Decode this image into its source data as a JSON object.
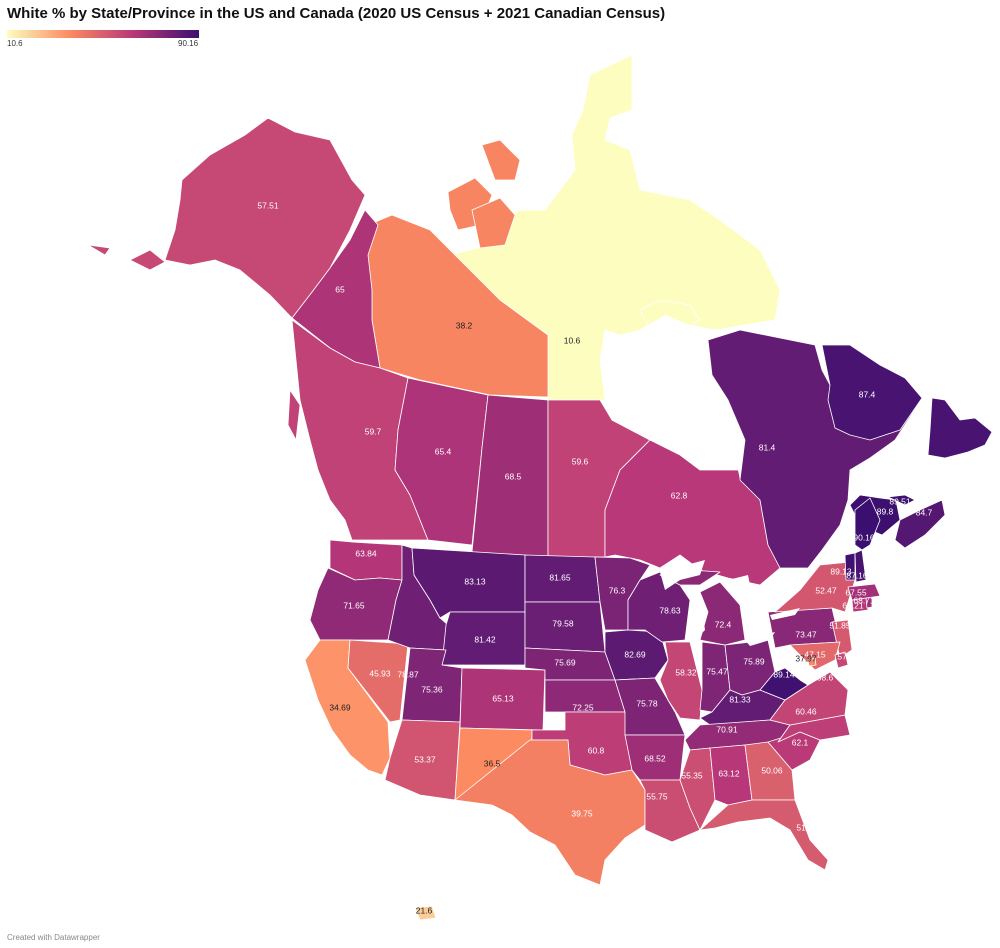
{
  "title": "White % by State/Province in the US and Canada (2020 US Census + 2021 Canadian Census)",
  "legend": {
    "min": "10.6",
    "max": "90.16"
  },
  "credit": "Created with Datawrapper",
  "colors": {
    "low": "#fcfdbf",
    "mid1": "#fc8961",
    "mid2": "#b73779",
    "high": "#3b0f70",
    "water": "#ffffff"
  },
  "regions": [
    {
      "id": "nunavut",
      "name": "Nunavut",
      "value": 10.6
    },
    {
      "id": "nwt",
      "name": "Northwest Territories",
      "value": 38.2
    },
    {
      "id": "yukon",
      "name": "Yukon",
      "value": 65
    },
    {
      "id": "bc",
      "name": "British Columbia",
      "value": 59.7
    },
    {
      "id": "ab",
      "name": "Alberta",
      "value": 65.4
    },
    {
      "id": "sk",
      "name": "Saskatchewan",
      "value": 68.5
    },
    {
      "id": "mb",
      "name": "Manitoba",
      "value": 59.6
    },
    {
      "id": "on",
      "name": "Ontario",
      "value": 62.8
    },
    {
      "id": "qc",
      "name": "Quebec",
      "value": 81.4
    },
    {
      "id": "nl_lab",
      "name": "Newfoundland and Labrador (Labrador)",
      "value": 87.4
    },
    {
      "id": "nl_isl",
      "name": "Newfoundland and Labrador (Island)",
      "value": null
    },
    {
      "id": "nb",
      "name": "New Brunswick",
      "value": 89.8
    },
    {
      "id": "ns",
      "name": "Nova Scotia",
      "value": 84.7
    },
    {
      "id": "pe",
      "name": "Prince Edward Island",
      "value": 89.51
    },
    {
      "id": "ak",
      "name": "Alaska",
      "value": 57.51
    },
    {
      "id": "hi",
      "name": "Hawaii",
      "value": 21.6
    },
    {
      "id": "wa",
      "name": "Washington",
      "value": 63.84
    },
    {
      "id": "or",
      "name": "Oregon",
      "value": 71.65
    },
    {
      "id": "ca",
      "name": "California",
      "value": 34.69
    },
    {
      "id": "nv",
      "name": "Nevada",
      "value": 45.93
    },
    {
      "id": "id",
      "name": "Idaho",
      "value": 78.87
    },
    {
      "id": "mt",
      "name": "Montana",
      "value": 83.13
    },
    {
      "id": "wy",
      "name": "Wyoming",
      "value": 81.42
    },
    {
      "id": "ut",
      "name": "Utah",
      "value": 75.36
    },
    {
      "id": "az",
      "name": "Arizona",
      "value": 53.37
    },
    {
      "id": "co",
      "name": "Colorado",
      "value": 65.13
    },
    {
      "id": "nm",
      "name": "New Mexico",
      "value": 36.5
    },
    {
      "id": "nd",
      "name": "North Dakota",
      "value": 81.65
    },
    {
      "id": "sd",
      "name": "South Dakota",
      "value": 79.58
    },
    {
      "id": "ne",
      "name": "Nebraska",
      "value": 75.69
    },
    {
      "id": "ks",
      "name": "Kansas",
      "value": 72.25
    },
    {
      "id": "ok",
      "name": "Oklahoma",
      "value": 60.8
    },
    {
      "id": "tx",
      "name": "Texas",
      "value": 39.75
    },
    {
      "id": "mn",
      "name": "Minnesota",
      "value": 76.3
    },
    {
      "id": "ia",
      "name": "Iowa",
      "value": 82.69
    },
    {
      "id": "mo",
      "name": "Missouri",
      "value": 75.78
    },
    {
      "id": "ar",
      "name": "Arkansas",
      "value": 68.52
    },
    {
      "id": "la",
      "name": "Louisiana",
      "value": 55.75
    },
    {
      "id": "wi",
      "name": "Wisconsin",
      "value": 78.63
    },
    {
      "id": "il",
      "name": "Illinois",
      "value": 58.32
    },
    {
      "id": "mi",
      "name": "Michigan",
      "value": 72.4
    },
    {
      "id": "in",
      "name": "Indiana",
      "value": 75.47
    },
    {
      "id": "oh",
      "name": "Ohio",
      "value": 75.89
    },
    {
      "id": "ky",
      "name": "Kentucky",
      "value": 81.33
    },
    {
      "id": "tn",
      "name": "Tennessee",
      "value": 70.91
    },
    {
      "id": "ms",
      "name": "Mississippi",
      "value": 55.35
    },
    {
      "id": "al",
      "name": "Alabama",
      "value": 63.12
    },
    {
      "id": "ga",
      "name": "Georgia",
      "value": 50.06
    },
    {
      "id": "fl",
      "name": "Florida",
      "value": 51.54
    },
    {
      "id": "sc",
      "name": "South Carolina",
      "value": 62.1
    },
    {
      "id": "nc",
      "name": "North Carolina",
      "value": 60.46
    },
    {
      "id": "va",
      "name": "Virginia",
      "value": 58.6
    },
    {
      "id": "wv",
      "name": "West Virginia",
      "value": 89.14
    },
    {
      "id": "pa",
      "name": "Pennsylvania",
      "value": 73.47
    },
    {
      "id": "ny",
      "name": "New York",
      "value": 52.47
    },
    {
      "id": "nj",
      "name": "New Jersey",
      "value": 51.85
    },
    {
      "id": "md",
      "name": "Maryland",
      "value": 47.15
    },
    {
      "id": "de",
      "name": "Delaware",
      "value": 57.96
    },
    {
      "id": "dc",
      "name": "District of Columbia",
      "value": 37.97
    },
    {
      "id": "ct",
      "name": "Connecticut",
      "value": 63.21
    },
    {
      "id": "ri",
      "name": "Rhode Island",
      "value": 68.71
    },
    {
      "id": "ma",
      "name": "Massachusetts",
      "value": 67.55
    },
    {
      "id": "vt",
      "name": "Vermont",
      "value": 89.13
    },
    {
      "id": "nh",
      "name": "New Hampshire",
      "value": 87.16
    },
    {
      "id": "me",
      "name": "Maine",
      "value": 90.16
    }
  ]
}
